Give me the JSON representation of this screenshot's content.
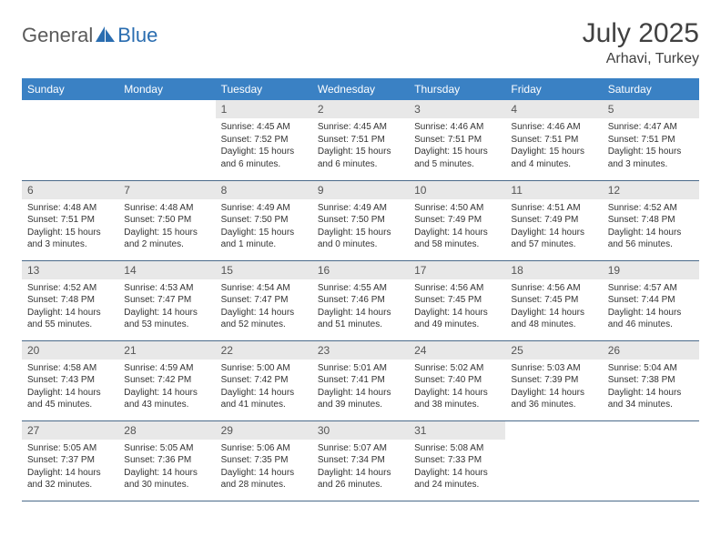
{
  "brand": {
    "text_general": "General",
    "text_blue": "Blue",
    "logo_color": "#2a6db0"
  },
  "header": {
    "month_title": "July 2025",
    "location": "Arhavi, Turkey"
  },
  "colors": {
    "header_bg": "#3a81c4",
    "header_text": "#ffffff",
    "daynum_bg": "#e8e8e8",
    "daynum_text": "#555555",
    "body_text": "#333333",
    "rule": "#4a6a8a"
  },
  "weekdays": [
    "Sunday",
    "Monday",
    "Tuesday",
    "Wednesday",
    "Thursday",
    "Friday",
    "Saturday"
  ],
  "weeks": [
    [
      null,
      null,
      {
        "n": "1",
        "sunrise": "4:45 AM",
        "sunset": "7:52 PM",
        "daylight": "15 hours and 6 minutes."
      },
      {
        "n": "2",
        "sunrise": "4:45 AM",
        "sunset": "7:51 PM",
        "daylight": "15 hours and 6 minutes."
      },
      {
        "n": "3",
        "sunrise": "4:46 AM",
        "sunset": "7:51 PM",
        "daylight": "15 hours and 5 minutes."
      },
      {
        "n": "4",
        "sunrise": "4:46 AM",
        "sunset": "7:51 PM",
        "daylight": "15 hours and 4 minutes."
      },
      {
        "n": "5",
        "sunrise": "4:47 AM",
        "sunset": "7:51 PM",
        "daylight": "15 hours and 3 minutes."
      }
    ],
    [
      {
        "n": "6",
        "sunrise": "4:48 AM",
        "sunset": "7:51 PM",
        "daylight": "15 hours and 3 minutes."
      },
      {
        "n": "7",
        "sunrise": "4:48 AM",
        "sunset": "7:50 PM",
        "daylight": "15 hours and 2 minutes."
      },
      {
        "n": "8",
        "sunrise": "4:49 AM",
        "sunset": "7:50 PM",
        "daylight": "15 hours and 1 minute."
      },
      {
        "n": "9",
        "sunrise": "4:49 AM",
        "sunset": "7:50 PM",
        "daylight": "15 hours and 0 minutes."
      },
      {
        "n": "10",
        "sunrise": "4:50 AM",
        "sunset": "7:49 PM",
        "daylight": "14 hours and 58 minutes."
      },
      {
        "n": "11",
        "sunrise": "4:51 AM",
        "sunset": "7:49 PM",
        "daylight": "14 hours and 57 minutes."
      },
      {
        "n": "12",
        "sunrise": "4:52 AM",
        "sunset": "7:48 PM",
        "daylight": "14 hours and 56 minutes."
      }
    ],
    [
      {
        "n": "13",
        "sunrise": "4:52 AM",
        "sunset": "7:48 PM",
        "daylight": "14 hours and 55 minutes."
      },
      {
        "n": "14",
        "sunrise": "4:53 AM",
        "sunset": "7:47 PM",
        "daylight": "14 hours and 53 minutes."
      },
      {
        "n": "15",
        "sunrise": "4:54 AM",
        "sunset": "7:47 PM",
        "daylight": "14 hours and 52 minutes."
      },
      {
        "n": "16",
        "sunrise": "4:55 AM",
        "sunset": "7:46 PM",
        "daylight": "14 hours and 51 minutes."
      },
      {
        "n": "17",
        "sunrise": "4:56 AM",
        "sunset": "7:45 PM",
        "daylight": "14 hours and 49 minutes."
      },
      {
        "n": "18",
        "sunrise": "4:56 AM",
        "sunset": "7:45 PM",
        "daylight": "14 hours and 48 minutes."
      },
      {
        "n": "19",
        "sunrise": "4:57 AM",
        "sunset": "7:44 PM",
        "daylight": "14 hours and 46 minutes."
      }
    ],
    [
      {
        "n": "20",
        "sunrise": "4:58 AM",
        "sunset": "7:43 PM",
        "daylight": "14 hours and 45 minutes."
      },
      {
        "n": "21",
        "sunrise": "4:59 AM",
        "sunset": "7:42 PM",
        "daylight": "14 hours and 43 minutes."
      },
      {
        "n": "22",
        "sunrise": "5:00 AM",
        "sunset": "7:42 PM",
        "daylight": "14 hours and 41 minutes."
      },
      {
        "n": "23",
        "sunrise": "5:01 AM",
        "sunset": "7:41 PM",
        "daylight": "14 hours and 39 minutes."
      },
      {
        "n": "24",
        "sunrise": "5:02 AM",
        "sunset": "7:40 PM",
        "daylight": "14 hours and 38 minutes."
      },
      {
        "n": "25",
        "sunrise": "5:03 AM",
        "sunset": "7:39 PM",
        "daylight": "14 hours and 36 minutes."
      },
      {
        "n": "26",
        "sunrise": "5:04 AM",
        "sunset": "7:38 PM",
        "daylight": "14 hours and 34 minutes."
      }
    ],
    [
      {
        "n": "27",
        "sunrise": "5:05 AM",
        "sunset": "7:37 PM",
        "daylight": "14 hours and 32 minutes."
      },
      {
        "n": "28",
        "sunrise": "5:05 AM",
        "sunset": "7:36 PM",
        "daylight": "14 hours and 30 minutes."
      },
      {
        "n": "29",
        "sunrise": "5:06 AM",
        "sunset": "7:35 PM",
        "daylight": "14 hours and 28 minutes."
      },
      {
        "n": "30",
        "sunrise": "5:07 AM",
        "sunset": "7:34 PM",
        "daylight": "14 hours and 26 minutes."
      },
      {
        "n": "31",
        "sunrise": "5:08 AM",
        "sunset": "7:33 PM",
        "daylight": "14 hours and 24 minutes."
      },
      null,
      null
    ]
  ],
  "labels": {
    "sunrise": "Sunrise:",
    "sunset": "Sunset:",
    "daylight": "Daylight:"
  }
}
